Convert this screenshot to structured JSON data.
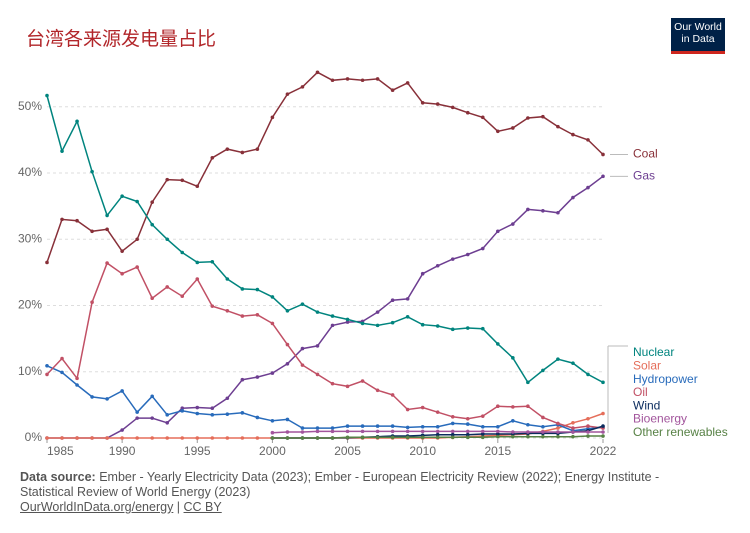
{
  "chart_data": {
    "type": "line",
    "title": "台湾各来源发电量占比",
    "logo": "Our World in Data",
    "source_label": "Data source:",
    "source_text": "Ember - Yearly Electricity Data (2023); Ember - European Electricity Review (2022); Energy Institute - Statistical Review of World Energy (2023)",
    "link": "OurWorldInData.org/energy",
    "license": "CC BY",
    "x": [
      1985,
      1986,
      1987,
      1988,
      1989,
      1990,
      1991,
      1992,
      1993,
      1994,
      1995,
      1996,
      1997,
      1998,
      1999,
      2000,
      2001,
      2002,
      2003,
      2004,
      2005,
      2006,
      2007,
      2008,
      2009,
      2010,
      2011,
      2012,
      2013,
      2014,
      2015,
      2016,
      2017,
      2018,
      2019,
      2020,
      2021,
      2022
    ],
    "xlim": [
      1985,
      2022
    ],
    "xticks": [
      1985,
      1990,
      1995,
      2000,
      2005,
      2010,
      2015,
      2022
    ],
    "ylim": [
      0,
      56
    ],
    "yticks": [
      {
        "value": 0,
        "label": "0%"
      },
      {
        "value": 10,
        "label": "10%"
      },
      {
        "value": 20,
        "label": "20%"
      },
      {
        "value": 30,
        "label": "30%"
      },
      {
        "value": 40,
        "label": "40%"
      },
      {
        "value": 50,
        "label": "50%"
      }
    ],
    "grid": true,
    "series": [
      {
        "name": "Coal",
        "color": "#883039",
        "values": [
          26.5,
          33,
          32.8,
          31.2,
          31.5,
          28.2,
          30,
          35.6,
          39,
          38.9,
          38,
          42.3,
          43.6,
          43.1,
          43.6,
          48.4,
          51.9,
          53,
          55.2,
          54,
          54.2,
          54,
          54.2,
          52.5,
          53.6,
          50.6,
          50.4,
          49.9,
          49.1,
          48.4,
          46.3,
          46.8,
          48.3,
          48.5,
          47,
          45.8,
          45,
          42.8
        ]
      },
      {
        "name": "Gas",
        "color": "#6d3e91",
        "values": [
          0,
          0,
          0,
          0,
          0,
          1.2,
          3,
          3,
          2.3,
          4.5,
          4.6,
          4.5,
          6,
          8.8,
          9.2,
          9.8,
          11.2,
          13.5,
          13.9,
          17,
          17.5,
          17.6,
          19,
          20.8,
          21,
          24.8,
          26,
          27,
          27.7,
          28.6,
          31.2,
          32.3,
          34.5,
          34.3,
          34,
          36.3,
          37.8,
          39.5
        ]
      },
      {
        "name": "Nuclear",
        "color": "#00847e",
        "values": [
          51.7,
          43.3,
          47.8,
          40.2,
          33.6,
          36.5,
          35.7,
          32.2,
          30,
          28,
          26.5,
          26.6,
          24,
          22.5,
          22.4,
          21.3,
          19.2,
          20.2,
          19,
          18.4,
          17.9,
          17.3,
          17,
          17.4,
          18.3,
          17.1,
          16.9,
          16.4,
          16.6,
          16.5,
          14.2,
          12.1,
          8.4,
          10.2,
          11.9,
          11.3,
          9.6,
          8.4
        ]
      },
      {
        "name": "Solar",
        "color": "#e56e5a",
        "values": [
          0,
          0,
          0,
          0,
          0,
          0,
          0,
          0,
          0,
          0,
          0,
          0,
          0,
          0,
          0,
          0,
          0,
          0,
          0,
          0,
          0,
          0,
          0,
          0,
          0,
          0,
          0,
          0.1,
          0.2,
          0.3,
          0.4,
          0.5,
          0.6,
          1,
          1.5,
          2.3,
          2.9,
          3.7
        ]
      },
      {
        "name": "Hydropower",
        "color": "#286bbb",
        "values": [
          10.9,
          9.9,
          8,
          6.2,
          5.9,
          7.1,
          3.9,
          6.3,
          3.5,
          4.1,
          3.7,
          3.5,
          3.6,
          3.8,
          3.1,
          2.6,
          2.8,
          1.5,
          1.5,
          1.5,
          1.8,
          1.8,
          1.8,
          1.8,
          1.6,
          1.7,
          1.7,
          2.2,
          2.1,
          1.7,
          1.7,
          2.6,
          2,
          1.7,
          2,
          1.1,
          1.4,
          1.6
        ]
      },
      {
        "name": "Oil",
        "color": "#c15065",
        "values": [
          9.6,
          12,
          9,
          20.5,
          26.4,
          24.8,
          25.8,
          21.1,
          22.8,
          21.4,
          24,
          19.9,
          19.2,
          18.4,
          18.6,
          17.3,
          14.1,
          11,
          9.6,
          8.2,
          7.8,
          8.6,
          7.2,
          6.5,
          4.3,
          4.6,
          3.9,
          3.2,
          2.9,
          3.3,
          4.8,
          4.7,
          4.8,
          3.1,
          2.2,
          1.5,
          1.8,
          1.5
        ]
      },
      {
        "name": "Wind",
        "color": "#0b2c5e",
        "values": [
          null,
          null,
          null,
          null,
          null,
          null,
          null,
          null,
          null,
          null,
          null,
          null,
          null,
          null,
          null,
          0,
          0,
          0,
          0,
          0,
          0.05,
          0.1,
          0.2,
          0.3,
          0.3,
          0.4,
          0.5,
          0.5,
          0.5,
          0.6,
          0.6,
          0.6,
          0.7,
          0.7,
          0.7,
          0.9,
          1.1,
          1.8
        ]
      },
      {
        "name": "Bioenergy",
        "color": "#a2559c",
        "values": [
          null,
          null,
          null,
          null,
          null,
          null,
          null,
          null,
          null,
          null,
          null,
          null,
          null,
          null,
          null,
          0.8,
          0.9,
          0.9,
          1,
          1,
          1,
          1,
          1,
          1,
          1,
          1,
          1,
          1,
          1,
          1,
          1,
          0.9,
          0.9,
          0.9,
          0.9,
          0.9,
          0.9,
          0.9
        ]
      },
      {
        "name": "Other renewables",
        "color": "#578145",
        "values": [
          null,
          null,
          null,
          null,
          null,
          null,
          null,
          null,
          null,
          null,
          null,
          null,
          null,
          null,
          null,
          0,
          0,
          0,
          0,
          0,
          0.1,
          0.1,
          0.1,
          0.1,
          0.1,
          0.1,
          0.1,
          0.1,
          0.1,
          0.1,
          0.2,
          0.2,
          0.2,
          0.2,
          0.2,
          0.2,
          0.3,
          0.3
        ]
      }
    ]
  }
}
